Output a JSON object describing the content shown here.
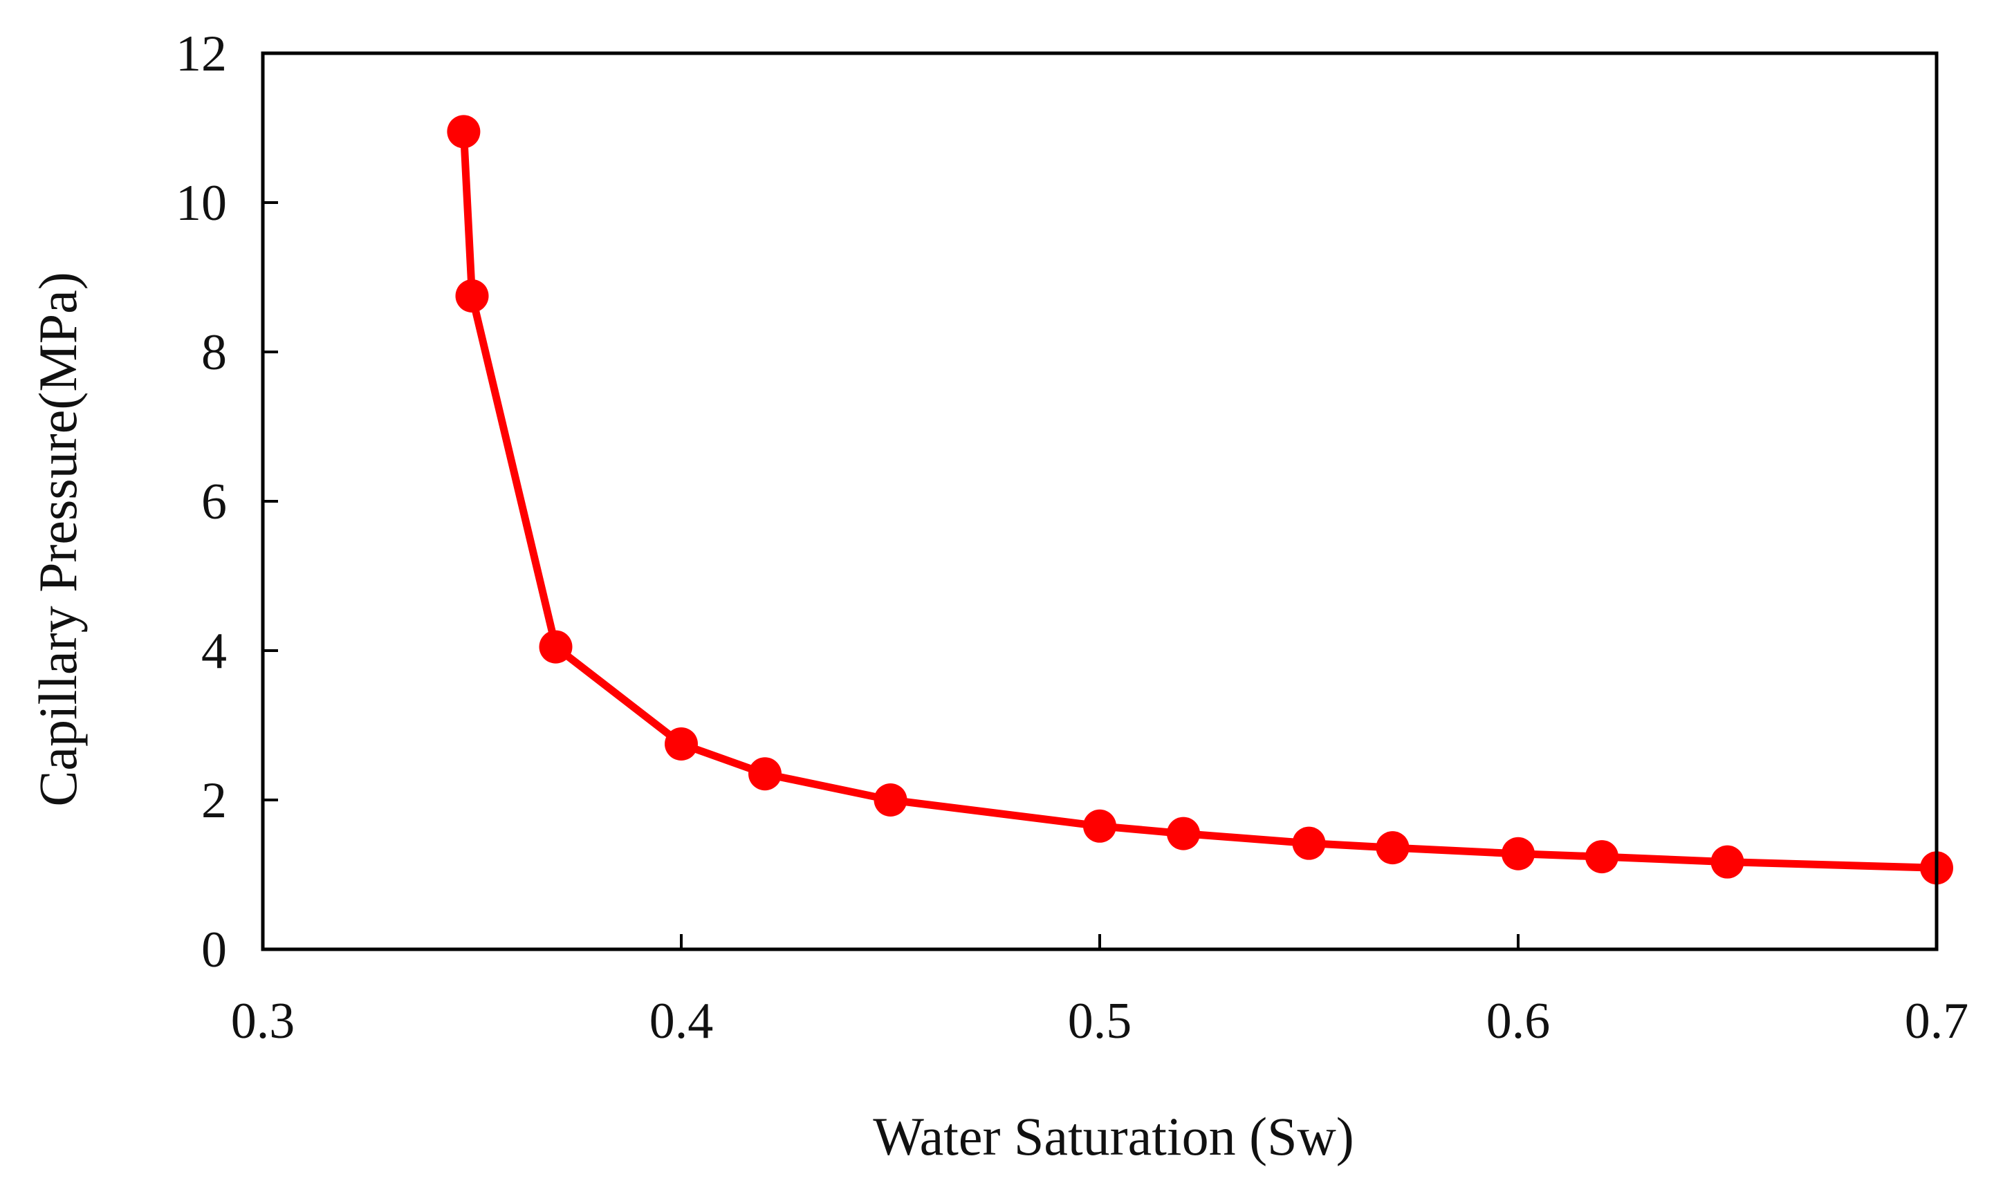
{
  "chart_data": {
    "type": "line",
    "title": "",
    "xlabel": "Water Saturation (Sw)",
    "ylabel": "Capillary Pressure(MPa)",
    "xlim": [
      0.3,
      0.7
    ],
    "ylim": [
      0,
      12
    ],
    "x_ticks": [
      "0.3",
      "0.4",
      "0.5",
      "0.6",
      "0.7"
    ],
    "y_ticks": [
      "0",
      "2",
      "4",
      "6",
      "8",
      "10",
      "12"
    ],
    "grid": false,
    "legend": "none",
    "series": [
      {
        "color": "#ff0000",
        "marker": "circle",
        "x": [
          0.348,
          0.35,
          0.37,
          0.4,
          0.42,
          0.45,
          0.5,
          0.52,
          0.55,
          0.57,
          0.6,
          0.62,
          0.65,
          0.7
        ],
        "y": [
          10.95,
          8.75,
          4.05,
          2.75,
          2.35,
          2.0,
          1.65,
          1.55,
          1.42,
          1.36,
          1.28,
          1.24,
          1.17,
          1.09
        ]
      }
    ]
  }
}
